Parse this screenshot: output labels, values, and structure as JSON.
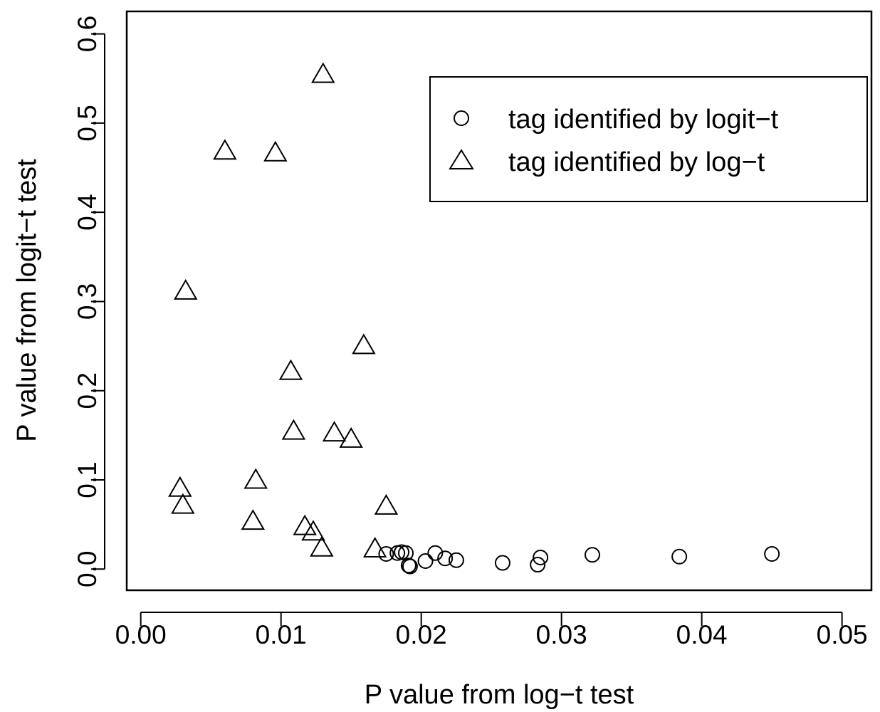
{
  "chart_data": {
    "type": "scatter",
    "xlabel": "P value from log−t test",
    "ylabel": "P value from logit−t test",
    "xlim": [
      -0.001,
      0.0521
    ],
    "ylim": [
      -0.0237,
      0.6252
    ],
    "x_ticks": [
      0.0,
      0.01,
      0.02,
      0.03,
      0.04,
      0.05
    ],
    "x_tick_labels": [
      "0.00",
      "0.01",
      "0.02",
      "0.03",
      "0.04",
      "0.05"
    ],
    "y_ticks": [
      0.0,
      0.1,
      0.2,
      0.3,
      0.4,
      0.5,
      0.6
    ],
    "y_tick_labels": [
      "0.0",
      "0.1",
      "0.2",
      "0.3",
      "0.4",
      "0.5",
      "0.6"
    ],
    "grid": false,
    "legend_position": "top-right",
    "series": [
      {
        "name": "tag identified by logit−t",
        "marker": "circle",
        "points": [
          [
            0.0175,
            0.017
          ],
          [
            0.0183,
            0.018
          ],
          [
            0.0186,
            0.019
          ],
          [
            0.0189,
            0.018
          ],
          [
            0.0191,
            0.004
          ],
          [
            0.0192,
            0.003
          ],
          [
            0.0203,
            0.009
          ],
          [
            0.021,
            0.018
          ],
          [
            0.0217,
            0.012
          ],
          [
            0.0225,
            0.01
          ],
          [
            0.0258,
            0.007
          ],
          [
            0.0283,
            0.005
          ],
          [
            0.0285,
            0.013
          ],
          [
            0.0322,
            0.016
          ],
          [
            0.0384,
            0.014
          ],
          [
            0.045,
            0.017
          ]
        ]
      },
      {
        "name": "tag identified by log−t",
        "marker": "triangle",
        "points": [
          [
            0.0028,
            0.089
          ],
          [
            0.003,
            0.07
          ],
          [
            0.0032,
            0.31
          ],
          [
            0.006,
            0.467
          ],
          [
            0.008,
            0.052
          ],
          [
            0.0082,
            0.098
          ],
          [
            0.0096,
            0.465
          ],
          [
            0.0107,
            0.22
          ],
          [
            0.0109,
            0.153
          ],
          [
            0.0117,
            0.046
          ],
          [
            0.0123,
            0.04
          ],
          [
            0.0129,
            0.022
          ],
          [
            0.013,
            0.553
          ],
          [
            0.0138,
            0.151
          ],
          [
            0.015,
            0.144
          ],
          [
            0.0159,
            0.249
          ],
          [
            0.0167,
            0.021
          ],
          [
            0.0175,
            0.069
          ]
        ]
      }
    ]
  }
}
